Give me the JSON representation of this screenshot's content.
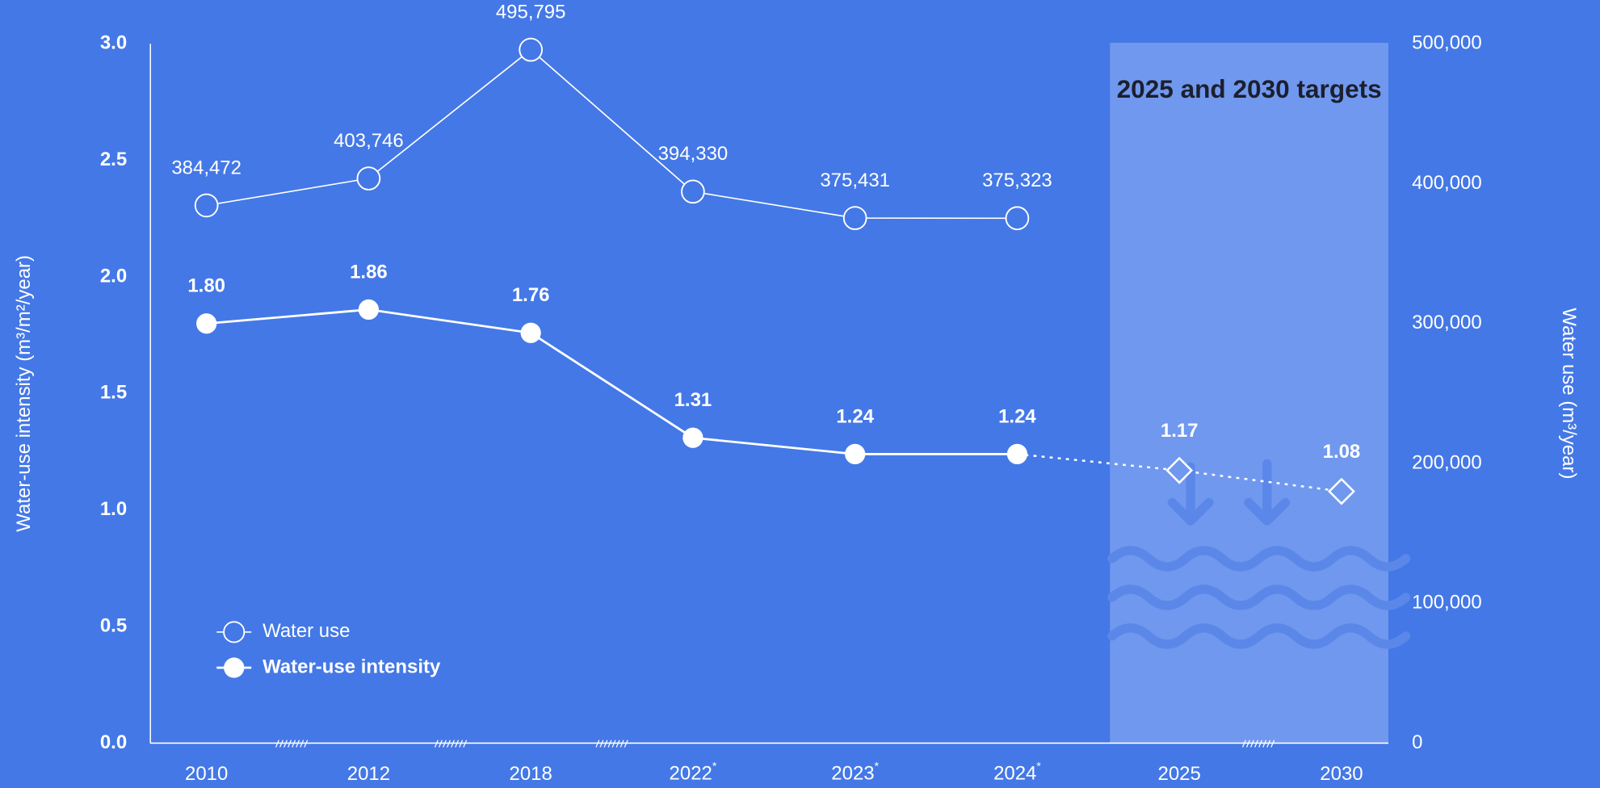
{
  "chart_data": {
    "type": "line",
    "categories": [
      "2010",
      "2012",
      "2018",
      "2022*",
      "2023*",
      "2024*",
      "2025",
      "2030"
    ],
    "series": [
      {
        "name": "Water use",
        "color": "#ffffff",
        "axis": "y2",
        "marker": "hollow-circle",
        "values": [
          384472,
          403746,
          495795,
          394330,
          375431,
          375323,
          null,
          null
        ],
        "value_labels": [
          "384,472",
          "403,746",
          "495,795",
          "394,330",
          "375,431",
          "375,323",
          null,
          null
        ]
      },
      {
        "name": "Water-use intensity",
        "color": "#ffffff",
        "marker": "filled-circle",
        "values": [
          1.8,
          1.86,
          1.76,
          1.31,
          1.24,
          1.24,
          null,
          null
        ],
        "value_labels": [
          "1.80",
          "1.86",
          "1.76",
          "1.31",
          "1.24",
          "1.24",
          null,
          null
        ]
      }
    ],
    "targets": {
      "values": [
        null,
        null,
        null,
        null,
        null,
        null,
        1.17,
        1.08
      ],
      "value_labels": [
        null,
        null,
        null,
        null,
        null,
        null,
        "1.17",
        "1.08"
      ]
    },
    "annotation": "2025 and 2030 targets",
    "y_label": "Water-use intensity (m³/m²/year)",
    "y2_label": "Water use (m³/year)",
    "ylim": [
      0,
      3
    ],
    "yticks": [
      {
        "value": 0,
        "label": "0.0"
      },
      0.5,
      {
        "value": 1,
        "label": "1.0"
      },
      1.5,
      {
        "value": 2,
        "label": "2.0"
      },
      2.5,
      {
        "value": 3,
        "label": "3.0"
      }
    ],
    "y2lim": [
      0,
      500000
    ],
    "y2ticks": [
      0,
      {
        "value": 100000,
        "label": "100,000"
      },
      {
        "value": 200000,
        "label": "200,000"
      },
      {
        "value": 300000,
        "label": "300,000"
      },
      {
        "value": 400000,
        "label": "400,000"
      },
      {
        "value": 500000,
        "label": "500,000"
      }
    ],
    "legend": "lower left",
    "grid": false
  }
}
